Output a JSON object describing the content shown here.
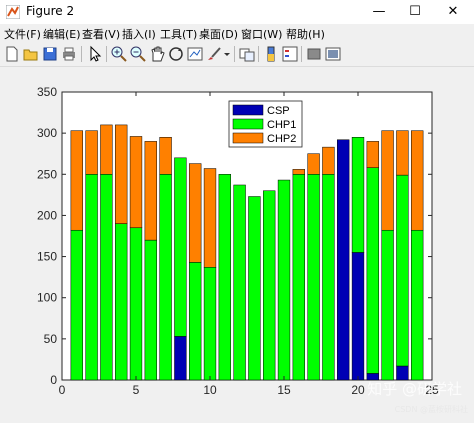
{
  "window": {
    "title": "Figure 2",
    "minimize": "—",
    "maximize": "☐",
    "close": "✕"
  },
  "menu": {
    "items": [
      "文件(F)",
      "编辑(E)",
      "查看(V)",
      "插入(I)",
      "工具(T)",
      "桌面(D)",
      "窗口(W)",
      "帮助(H)"
    ]
  },
  "toolbar": {
    "icons": [
      "new-figure-icon",
      "open-icon",
      "save-icon",
      "print-icon",
      "pointer-icon",
      "zoom-in-icon",
      "zoom-out-icon",
      "pan-icon",
      "rotate-3d-icon",
      "data-cursor-icon",
      "brush-icon",
      "link-plot-icon",
      "colorbar-icon",
      "legend-icon",
      "hide-plot-tools-icon",
      "show-plot-tools-icon"
    ]
  },
  "watermark": {
    "main": "知乎 @研学社",
    "sub": "CSDN @蓝桉研科社"
  },
  "colors": {
    "CSP": "#0000b4",
    "CHP1": "#00ff00",
    "CHP2": "#ff8000"
  },
  "chart_data": {
    "type": "bar",
    "stacked": true,
    "x": [
      1,
      2,
      3,
      4,
      5,
      6,
      7,
      8,
      9,
      10,
      11,
      12,
      13,
      14,
      15,
      16,
      17,
      18,
      19,
      20,
      21,
      22,
      23,
      24
    ],
    "series": [
      {
        "name": "CSP",
        "values": [
          0,
          0,
          0,
          0,
          0,
          0,
          0,
          53,
          0,
          0,
          0,
          0,
          0,
          0,
          0,
          0,
          0,
          0,
          292,
          155,
          8,
          0,
          17,
          0
        ]
      },
      {
        "name": "CHP1",
        "values": [
          182,
          250,
          250,
          190,
          185,
          170,
          250,
          217,
          143,
          137,
          250,
          237,
          223,
          230,
          243,
          250,
          250,
          250,
          0,
          140,
          250,
          182,
          232,
          182
        ]
      },
      {
        "name": "CHP2",
        "values": [
          121,
          53,
          60,
          120,
          111,
          120,
          45,
          0,
          120,
          120,
          0,
          0,
          0,
          0,
          0,
          6,
          25,
          33,
          0,
          0,
          32,
          121,
          54,
          121
        ]
      }
    ],
    "xlim": [
      0,
      25
    ],
    "ylim": [
      0,
      350
    ],
    "xticks": [
      0,
      5,
      10,
      15,
      20,
      25
    ],
    "yticks": [
      0,
      50,
      100,
      150,
      200,
      250,
      300,
      350
    ],
    "legend_position": "top-center",
    "grid": false
  }
}
